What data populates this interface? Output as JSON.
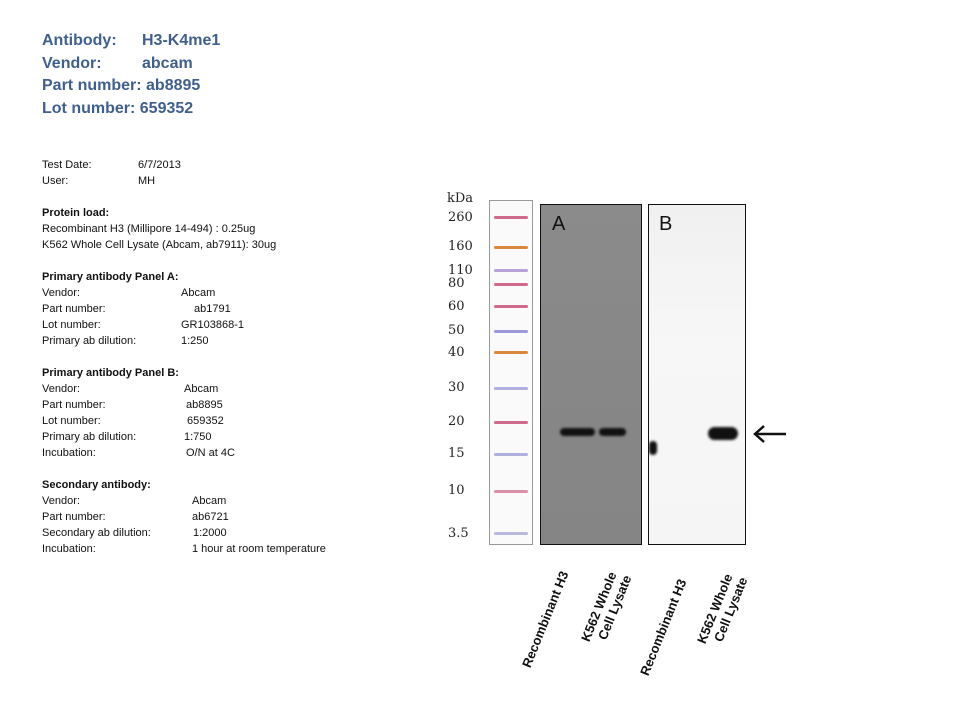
{
  "header": {
    "antibody_label": "Antibody:",
    "antibody_value": "H3-K4me1",
    "vendor_label": "Vendor:",
    "vendor_value": "abcam",
    "part_label": "Part number:",
    "part_value": "ab8895",
    "lot_label": "Lot number:",
    "lot_value": "659352"
  },
  "test": {
    "date_label": "Test Date:",
    "date_value": "6/7/2013",
    "user_label": "User:",
    "user_value": "MH"
  },
  "protein_load": {
    "title": "Protein load:",
    "line1": "Recombinant H3 (Millipore 14-494) : 0.25ug",
    "line2": "K562 Whole Cell Lysate (Abcam, ab7911): 30ug"
  },
  "panel_a": {
    "title": "Primary antibody  Panel A:",
    "vendor_label": "Vendor:",
    "vendor_value": "Abcam",
    "part_label": "Part number:",
    "part_value": "ab1791",
    "lot_label": "Lot number:",
    "lot_value": "GR103868-1",
    "dilution_label": "Primary ab dilution:",
    "dilution_value": "1:250"
  },
  "panel_b": {
    "title": "Primary antibody  Panel B:",
    "vendor_label": "Vendor:",
    "vendor_value": "Abcam",
    "part_label": "Part number:",
    "part_value": "ab8895",
    "lot_label": "Lot number:",
    "lot_value": "659352",
    "dilution_label": "Primary ab dilution:",
    "dilution_value": "1:750",
    "incubation_label": "Incubation:",
    "incubation_value": "O/N at 4C"
  },
  "secondary": {
    "title": "Secondary antibody:",
    "vendor_label": "Vendor:",
    "vendor_value": "Abcam",
    "part_label": "Part number:",
    "part_value": "ab6721",
    "dilution_label": "Secondary ab dilution:",
    "dilution_value": "1:2000",
    "incubation_label": "Incubation:",
    "incubation_value": "1 hour at room temperature"
  },
  "blot": {
    "kda_label": "kDa",
    "markers": [
      "260",
      "160",
      "110",
      "80",
      "60",
      "50",
      "40",
      "30",
      "20",
      "15",
      "10",
      "3.5"
    ],
    "panel_a_label": "A",
    "panel_b_label": "B",
    "lane1_label": "Recombinant  H3",
    "lane2_label_line1": "K562 Whole",
    "lane2_label_line2": "Cell Lysate",
    "lane3_label": "Recombinant  H3",
    "lane4_label_line1": "K562 Whole",
    "lane4_label_line2": "Cell Lysate",
    "arrow_icon": "left-arrow-icon",
    "ladder_colors": {
      "red": "#d06a8a",
      "orange": "#d8893e",
      "blue": "#9a9ad8"
    }
  }
}
